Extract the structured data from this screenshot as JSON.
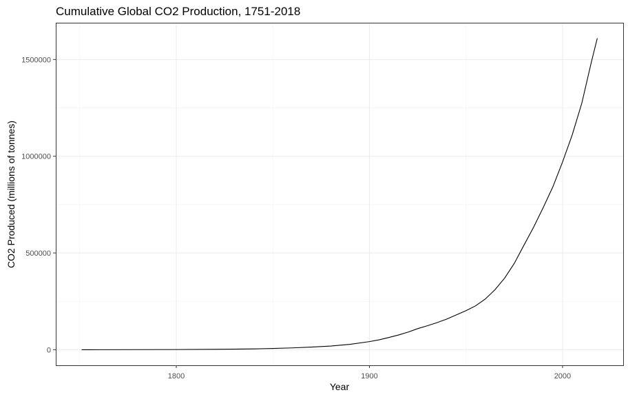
{
  "chart_data": {
    "type": "line",
    "title": "Cumulative Global CO2 Production, 1751-2018",
    "xlabel": "Year",
    "ylabel": "CO2 Produced (millions of tonnes)",
    "xlim": [
      1737.6,
      2031.4
    ],
    "ylim": [
      -80500,
      1690000
    ],
    "x_ticks": [
      1800,
      1900,
      2000
    ],
    "x_tick_labels": [
      "1800",
      "1900",
      "2000"
    ],
    "y_ticks": [
      0,
      500000,
      1000000,
      1500000
    ],
    "y_tick_labels": [
      "0",
      "500000",
      "1000000",
      "1500000"
    ],
    "grid": true,
    "legend": "none",
    "series": [
      {
        "x": [
          1751,
          1760,
          1780,
          1800,
          1820,
          1830,
          1840,
          1850,
          1860,
          1870,
          1880,
          1890,
          1900,
          1905,
          1910,
          1915,
          1920,
          1925,
          1930,
          1935,
          1940,
          1945,
          1950,
          1955,
          1960,
          1965,
          1970,
          1975,
          1980,
          1985,
          1990,
          1995,
          2000,
          2005,
          2010,
          2015,
          2018
        ],
        "y": [
          0,
          100,
          500,
          1000,
          2000,
          3000,
          4500,
          6500,
          9500,
          13500,
          19000,
          28000,
          42000,
          51000,
          63000,
          76000,
          91000,
          109000,
          124000,
          140000,
          158000,
          180000,
          202000,
          227000,
          262000,
          310000,
          370000,
          446000,
          540000,
          633000,
          735000,
          842000,
          970000,
          1110000,
          1275000,
          1490000,
          1610000
        ]
      }
    ]
  }
}
